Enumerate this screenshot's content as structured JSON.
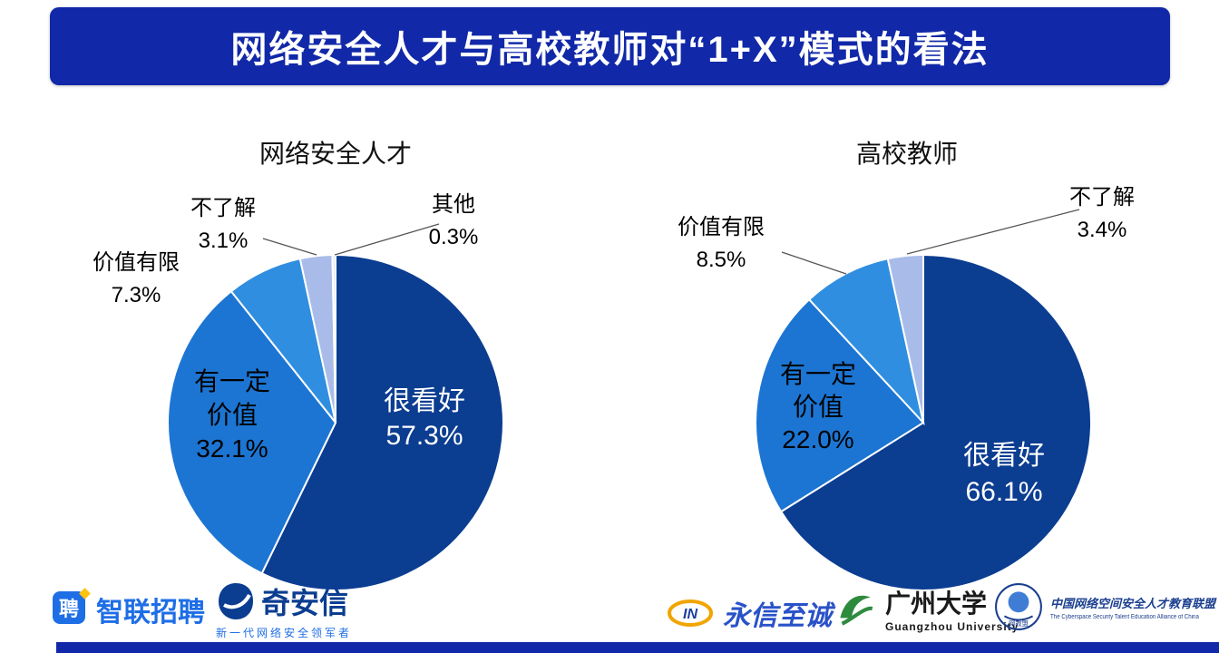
{
  "banner": {
    "title": "网络安全人才与高校教师对“1+X”模式的看法"
  },
  "chart_data": [
    {
      "type": "pie",
      "title": "网络安全人才",
      "legend_position": "none",
      "slices": [
        {
          "label": "很看好",
          "label_lines": [
            "很看好"
          ],
          "value": 57.3,
          "color": "#0b3d91",
          "text_color": "#ffffff"
        },
        {
          "label": "有一定价值",
          "label_lines": [
            "有一定",
            "价值"
          ],
          "value": 32.1,
          "color": "#1c75d2",
          "text_color": "#000000"
        },
        {
          "label": "价值有限",
          "label_lines": [
            "价值有限"
          ],
          "value": 7.3,
          "color": "#2f8ee0",
          "text_color": "#000000"
        },
        {
          "label": "不了解",
          "label_lines": [
            "不了解"
          ],
          "value": 3.1,
          "color": "#a9bce9",
          "text_color": "#000000"
        },
        {
          "label": "其他",
          "label_lines": [
            "其他"
          ],
          "value": 0.3,
          "color": "#e4eaf7",
          "text_color": "#000000"
        }
      ]
    },
    {
      "type": "pie",
      "title": "高校教师",
      "legend_position": "none",
      "slices": [
        {
          "label": "很看好",
          "label_lines": [
            "很看好"
          ],
          "value": 66.1,
          "color": "#0b3d91",
          "text_color": "#ffffff"
        },
        {
          "label": "有一定价值",
          "label_lines": [
            "有一定",
            "价值"
          ],
          "value": 22.0,
          "color": "#1c75d2",
          "text_color": "#000000"
        },
        {
          "label": "价值有限",
          "label_lines": [
            "价值有限"
          ],
          "value": 8.5,
          "color": "#2f8ee0",
          "text_color": "#000000"
        },
        {
          "label": "不了解",
          "label_lines": [
            "不了解"
          ],
          "value": 3.4,
          "color": "#a9bce9",
          "text_color": "#000000"
        }
      ]
    }
  ],
  "footer": {
    "logos": [
      {
        "name": "zhilian",
        "icon_char": "聘",
        "text": "智联招聘"
      },
      {
        "name": "qianxin",
        "text": "奇安信",
        "tagline": "新一代网络安全领军者"
      },
      {
        "name": "yongxin",
        "icon_text": "IN",
        "text": "永信至诚"
      },
      {
        "name": "gzhu",
        "text": "广州大学",
        "subtext": "Guangzhou University"
      },
      {
        "name": "alliance",
        "icon_text": "网教盟",
        "text": "中国网络空间安全人才教育联盟",
        "subtext": "The Cyberspace Security Talent Education Alliance of China"
      }
    ]
  },
  "colors": {
    "banner_bg": "#1128a8",
    "pie_dark_blue": "#0b3d91",
    "pie_medium_blue": "#1c75d2",
    "pie_light_blue": "#2f8ee0",
    "pie_lavender": "#a9bce9",
    "bottom_bar": "#1128a8"
  }
}
